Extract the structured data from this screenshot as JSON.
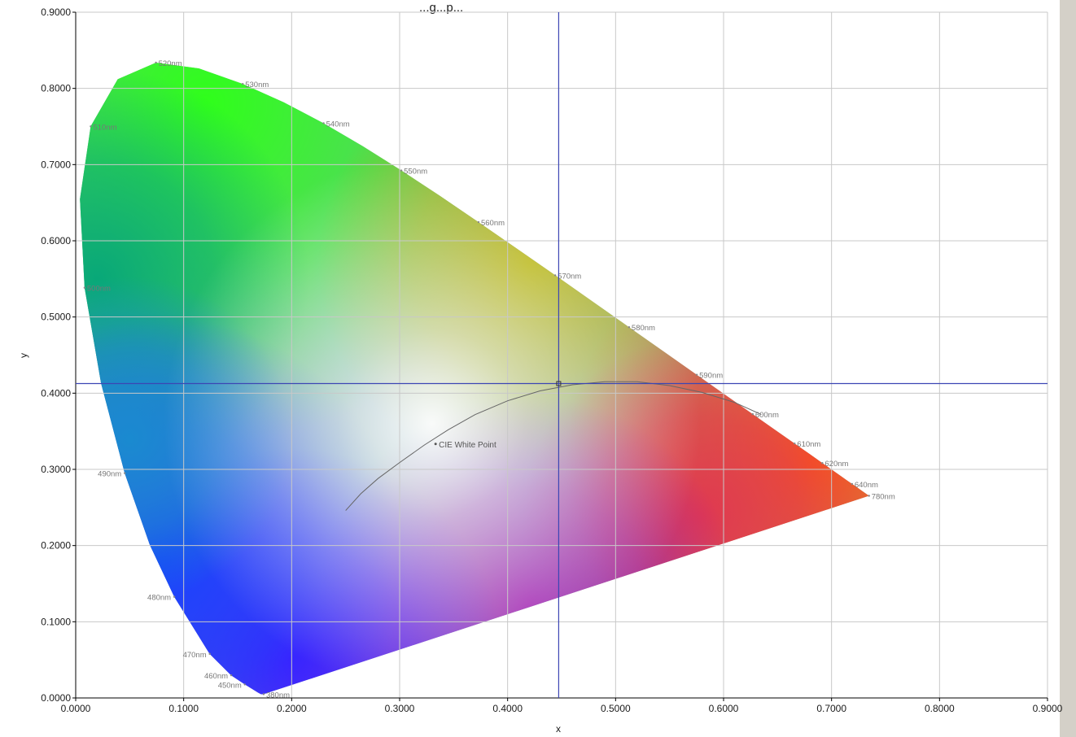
{
  "chart_data": {
    "type": "scatter",
    "title": "...g...p...",
    "xlabel": "x",
    "ylabel": "y",
    "xlim": [
      0,
      0.9
    ],
    "ylim": [
      0,
      0.9
    ],
    "grid": true,
    "x_ticks": [
      "0.0000",
      "0.1000",
      "0.2000",
      "0.3000",
      "0.4000",
      "0.5000",
      "0.6000",
      "0.7000",
      "0.8000",
      "0.9000"
    ],
    "y_ticks": [
      "0.0000",
      "0.1000",
      "0.2000",
      "0.3000",
      "0.4000",
      "0.5000",
      "0.6000",
      "0.7000",
      "0.8000",
      "0.9000"
    ],
    "spectral_locus": [
      [
        0.1741,
        0.005
      ],
      [
        0.1738,
        0.0049
      ],
      [
        0.1733,
        0.0048
      ],
      [
        0.1726,
        0.0048
      ],
      [
        0.1714,
        0.0051
      ],
      [
        0.1689,
        0.0069
      ],
      [
        0.1644,
        0.0109
      ],
      [
        0.1566,
        0.0177
      ],
      [
        0.144,
        0.0297
      ],
      [
        0.1241,
        0.0578
      ],
      [
        0.0913,
        0.1327
      ],
      [
        0.0687,
        0.2007
      ],
      [
        0.0454,
        0.295
      ],
      [
        0.0235,
        0.4127
      ],
      [
        0.0082,
        0.5384
      ],
      [
        0.0039,
        0.6548
      ],
      [
        0.0139,
        0.7502
      ],
      [
        0.0389,
        0.812
      ],
      [
        0.0743,
        0.8338
      ],
      [
        0.1142,
        0.8262
      ],
      [
        0.1547,
        0.8059
      ],
      [
        0.1929,
        0.7816
      ],
      [
        0.2296,
        0.7543
      ],
      [
        0.2658,
        0.7243
      ],
      [
        0.3016,
        0.6923
      ],
      [
        0.3373,
        0.6589
      ],
      [
        0.3731,
        0.6245
      ],
      [
        0.4087,
        0.5896
      ],
      [
        0.4441,
        0.5547
      ],
      [
        0.4788,
        0.5202
      ],
      [
        0.5125,
        0.4866
      ],
      [
        0.5448,
        0.4544
      ],
      [
        0.5752,
        0.4242
      ],
      [
        0.6029,
        0.3965
      ],
      [
        0.627,
        0.3725
      ],
      [
        0.6482,
        0.3514
      ],
      [
        0.6658,
        0.334
      ],
      [
        0.6801,
        0.3197
      ],
      [
        0.6915,
        0.3083
      ],
      [
        0.7006,
        0.2993
      ],
      [
        0.7079,
        0.292
      ],
      [
        0.714,
        0.2859
      ],
      [
        0.719,
        0.2809
      ],
      [
        0.723,
        0.277
      ],
      [
        0.726,
        0.274
      ],
      [
        0.7283,
        0.2717
      ],
      [
        0.73,
        0.27
      ],
      [
        0.7347,
        0.2653
      ]
    ],
    "wavelength_labels": [
      {
        "label": "380nm",
        "x": 0.1741,
        "y": 0.005
      },
      {
        "label": "450nm",
        "x": 0.1566,
        "y": 0.0177
      },
      {
        "label": "460nm",
        "x": 0.144,
        "y": 0.0297
      },
      {
        "label": "470nm",
        "x": 0.1241,
        "y": 0.0578
      },
      {
        "label": "480nm",
        "x": 0.0913,
        "y": 0.1327
      },
      {
        "label": "490nm",
        "x": 0.0454,
        "y": 0.295
      },
      {
        "label": "500nm",
        "x": 0.0082,
        "y": 0.5384
      },
      {
        "label": "510nm",
        "x": 0.0139,
        "y": 0.7502
      },
      {
        "label": "520nm",
        "x": 0.0743,
        "y": 0.8338
      },
      {
        "label": "530nm",
        "x": 0.1547,
        "y": 0.8059
      },
      {
        "label": "540nm",
        "x": 0.2296,
        "y": 0.7543
      },
      {
        "label": "550nm",
        "x": 0.3016,
        "y": 0.6923
      },
      {
        "label": "560nm",
        "x": 0.3731,
        "y": 0.6245
      },
      {
        "label": "570nm",
        "x": 0.4441,
        "y": 0.5547
      },
      {
        "label": "580nm",
        "x": 0.5125,
        "y": 0.4866
      },
      {
        "label": "590nm",
        "x": 0.5752,
        "y": 0.4242
      },
      {
        "label": "600nm",
        "x": 0.627,
        "y": 0.3725
      },
      {
        "label": "610nm",
        "x": 0.6658,
        "y": 0.334
      },
      {
        "label": "620nm",
        "x": 0.6915,
        "y": 0.3083
      },
      {
        "label": "640nm",
        "x": 0.719,
        "y": 0.2809
      },
      {
        "label": "780nm",
        "x": 0.7347,
        "y": 0.2653
      }
    ],
    "white_point": {
      "label": "CIE White Point",
      "x": 0.3333,
      "y": 0.3333
    },
    "planckian_locus": [
      [
        0.25,
        0.246
      ],
      [
        0.264,
        0.268
      ],
      [
        0.28,
        0.288
      ],
      [
        0.3,
        0.309
      ],
      [
        0.323,
        0.332
      ],
      [
        0.345,
        0.352
      ],
      [
        0.37,
        0.372
      ],
      [
        0.4,
        0.39
      ],
      [
        0.43,
        0.403
      ],
      [
        0.46,
        0.411
      ],
      [
        0.49,
        0.415
      ],
      [
        0.52,
        0.415
      ],
      [
        0.55,
        0.41
      ],
      [
        0.58,
        0.401
      ],
      [
        0.61,
        0.388
      ],
      [
        0.635,
        0.372
      ]
    ],
    "cursor": {
      "x": 0.4473,
      "y": 0.4126
    },
    "colors": {
      "cursor": "#3c46b4",
      "grid": "#c8c8c8",
      "panel": "#d4d0c8",
      "curve": "#666666"
    }
  }
}
